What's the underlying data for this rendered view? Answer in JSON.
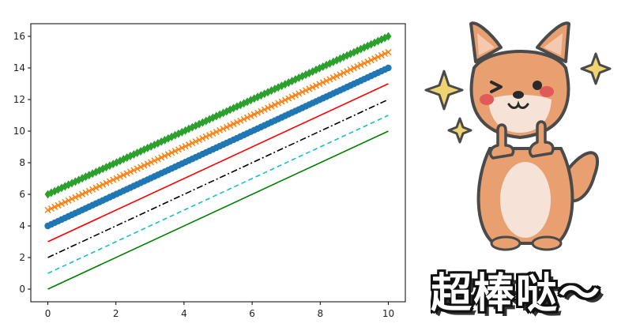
{
  "chart_data": {
    "type": "line",
    "x": [
      0,
      10
    ],
    "xlim": [
      -0.5,
      10.5
    ],
    "ylim": [
      -0.8,
      16.8
    ],
    "xticks": [
      0,
      2,
      4,
      6,
      8,
      10
    ],
    "yticks": [
      0,
      2,
      4,
      6,
      8,
      10,
      12,
      14,
      16
    ],
    "xtick_labels": [
      "0",
      "2",
      "4",
      "6",
      "8",
      "10"
    ],
    "ytick_labels": [
      "0",
      "2",
      "4",
      "6",
      "8",
      "10",
      "12",
      "14",
      "16"
    ],
    "grid": false,
    "series": [
      {
        "values": [
          0,
          10
        ],
        "color": "#008000",
        "linestyle": "solid",
        "marker": "none"
      },
      {
        "values": [
          1,
          11
        ],
        "color": "#17becf",
        "linestyle": "dashed",
        "marker": "none"
      },
      {
        "values": [
          2,
          12
        ],
        "color": "#000000",
        "linestyle": "dashdot",
        "marker": "none"
      },
      {
        "values": [
          3,
          13
        ],
        "color": "#ff0000",
        "linestyle": "solid",
        "marker": "none"
      },
      {
        "values": [
          4,
          14
        ],
        "color": "#1f77b4",
        "linestyle": "solid",
        "marker": "circle"
      },
      {
        "values": [
          5,
          15
        ],
        "color": "#ff7f0e",
        "linestyle": "none",
        "marker": "x"
      },
      {
        "values": [
          6,
          16
        ],
        "color": "#2ca02c",
        "linestyle": "solid",
        "marker": "diamond"
      }
    ]
  },
  "sticker": {
    "text": "超棒哒～",
    "icon": "shiba-dog-thumbs-up-icon",
    "colors": {
      "fur": "#e8a070",
      "belly": "#f6e2d6",
      "outline": "#4a4a4a",
      "cheek": "#e05a5a",
      "star": "#f0d472"
    }
  }
}
